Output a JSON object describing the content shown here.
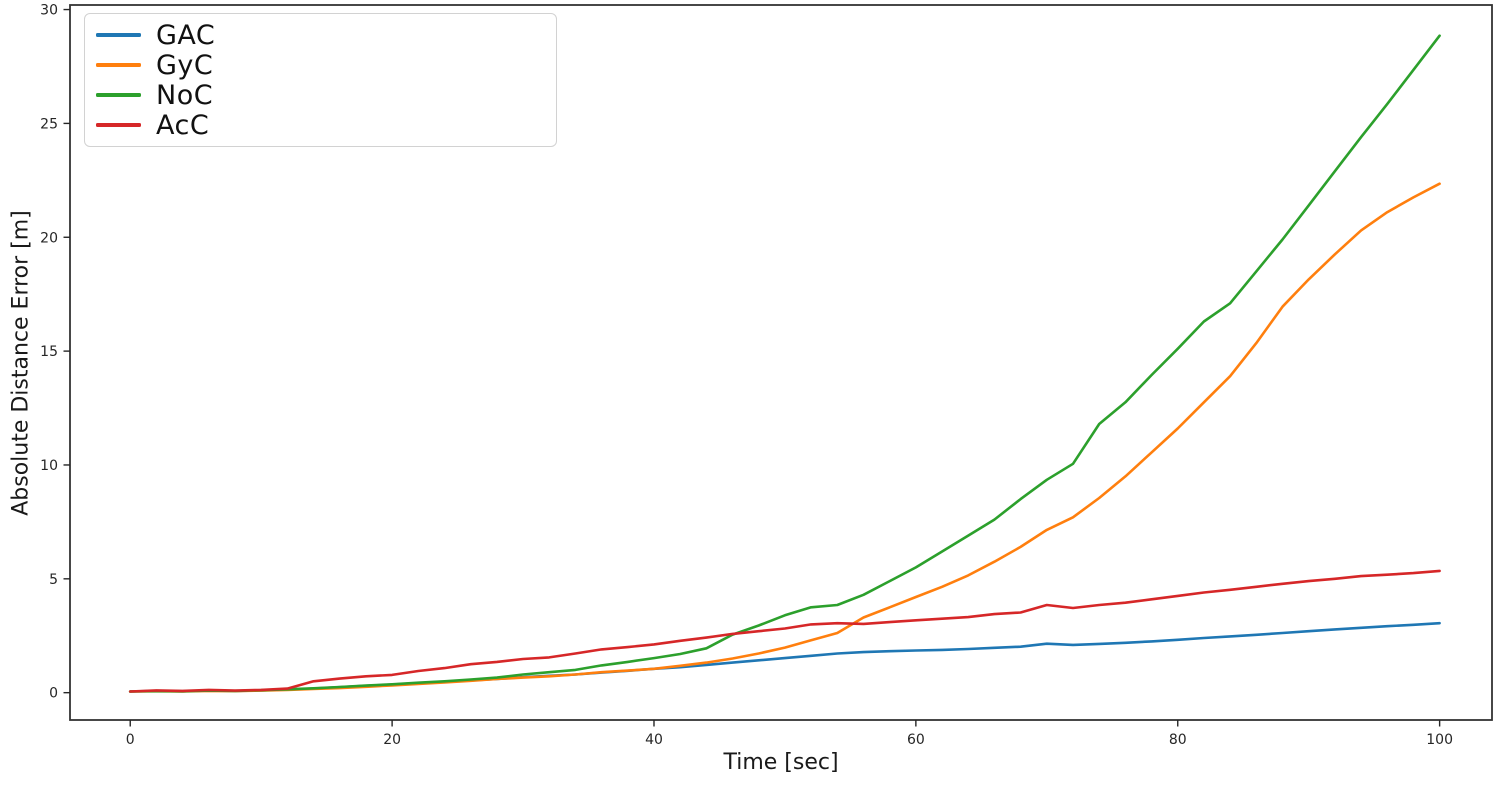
{
  "figure": {
    "background": "#ffffff",
    "spine_color": "#333333",
    "tick_color": "#262626",
    "text_color": "#1a1a1a"
  },
  "chart_data": {
    "type": "line",
    "title": "",
    "xlabel": "Time [sec]",
    "ylabel": "Absolute Distance Error [m]",
    "grid": false,
    "legend_position": "upper left",
    "xlim": [
      -4.6,
      104.0
    ],
    "ylim": [
      -1.2,
      30.2
    ],
    "xticks": [
      0,
      20,
      40,
      60,
      80,
      100
    ],
    "yticks": [
      0,
      5,
      10,
      15,
      20,
      25,
      30
    ],
    "x": [
      0,
      2,
      4,
      6,
      8,
      10,
      12,
      14,
      16,
      18,
      20,
      22,
      24,
      26,
      28,
      30,
      32,
      34,
      36,
      38,
      40,
      42,
      44,
      46,
      48,
      50,
      52,
      54,
      56,
      58,
      60,
      62,
      64,
      66,
      68,
      70,
      72,
      74,
      76,
      78,
      80,
      82,
      84,
      86,
      88,
      90,
      92,
      94,
      96,
      98,
      100
    ],
    "series": [
      {
        "name": "GAC",
        "color": "#1f77b4",
        "values": [
          0.05,
          0.08,
          0.06,
          0.1,
          0.08,
          0.1,
          0.14,
          0.18,
          0.24,
          0.3,
          0.36,
          0.42,
          0.48,
          0.54,
          0.6,
          0.68,
          0.74,
          0.8,
          0.88,
          0.96,
          1.05,
          1.12,
          1.22,
          1.32,
          1.42,
          1.52,
          1.62,
          1.72,
          1.78,
          1.82,
          1.85,
          1.88,
          1.92,
          1.97,
          2.02,
          2.15,
          2.1,
          2.14,
          2.19,
          2.25,
          2.32,
          2.4,
          2.47,
          2.54,
          2.62,
          2.7,
          2.78,
          2.85,
          2.92,
          2.98,
          3.05
        ]
      },
      {
        "name": "GyC",
        "color": "#ff7f0e",
        "values": [
          0.05,
          0.06,
          0.05,
          0.08,
          0.07,
          0.09,
          0.12,
          0.16,
          0.2,
          0.26,
          0.32,
          0.38,
          0.45,
          0.52,
          0.6,
          0.66,
          0.72,
          0.8,
          0.9,
          0.97,
          1.05,
          1.18,
          1.32,
          1.5,
          1.72,
          1.98,
          2.3,
          2.62,
          3.3,
          3.75,
          4.2,
          4.65,
          5.15,
          5.75,
          6.4,
          7.15,
          7.7,
          8.55,
          9.5,
          10.55,
          11.6,
          12.75,
          13.9,
          15.35,
          16.95,
          18.15,
          19.25,
          20.3,
          21.1,
          21.75,
          22.35
        ]
      },
      {
        "name": "NoC",
        "color": "#2ca02c",
        "values": [
          0.05,
          0.07,
          0.06,
          0.09,
          0.08,
          0.11,
          0.15,
          0.19,
          0.25,
          0.31,
          0.37,
          0.44,
          0.5,
          0.58,
          0.66,
          0.8,
          0.9,
          1.0,
          1.2,
          1.35,
          1.52,
          1.7,
          1.95,
          2.55,
          2.95,
          3.4,
          3.75,
          3.85,
          4.3,
          4.9,
          5.5,
          6.2,
          6.9,
          7.6,
          8.5,
          9.35,
          10.05,
          11.8,
          12.75,
          13.95,
          15.1,
          16.3,
          17.1,
          18.5,
          19.9,
          21.4,
          22.9,
          24.4,
          25.85,
          27.35,
          28.85
        ]
      },
      {
        "name": "AcC",
        "color": "#d62728",
        "values": [
          0.05,
          0.1,
          0.08,
          0.12,
          0.09,
          0.12,
          0.18,
          0.5,
          0.62,
          0.72,
          0.78,
          0.95,
          1.08,
          1.25,
          1.35,
          1.48,
          1.55,
          1.72,
          1.9,
          2.0,
          2.12,
          2.28,
          2.42,
          2.58,
          2.7,
          2.82,
          3.0,
          3.05,
          3.02,
          3.1,
          3.18,
          3.25,
          3.32,
          3.45,
          3.52,
          3.85,
          3.72,
          3.85,
          3.95,
          4.1,
          4.25,
          4.4,
          4.52,
          4.65,
          4.78,
          4.9,
          5.0,
          5.12,
          5.18,
          5.25,
          5.35
        ]
      }
    ]
  }
}
